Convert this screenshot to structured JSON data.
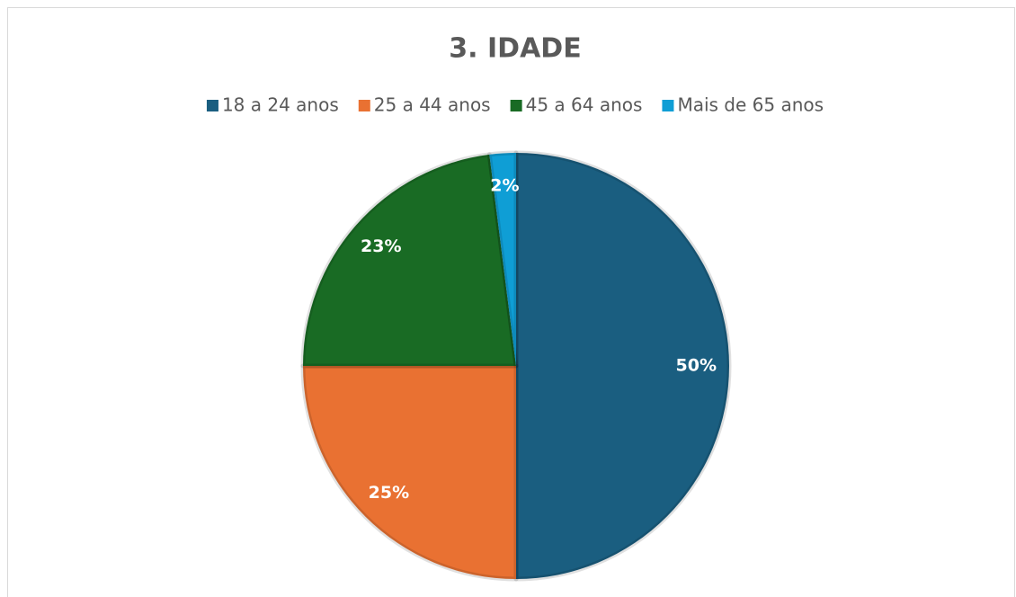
{
  "chart_data": {
    "type": "pie",
    "title": "3. IDADE",
    "categories": [
      "18 a 24 anos",
      "25 a 44 anos",
      "45 a 64 anos",
      "Mais de 65 anos"
    ],
    "values": [
      50,
      25,
      23,
      2
    ],
    "value_labels": [
      "50%",
      "25%",
      "23%",
      "2%"
    ],
    "colors": [
      "#1a5e80",
      "#e97132",
      "#196b24",
      "#0f9ed5"
    ],
    "legend": "top"
  }
}
